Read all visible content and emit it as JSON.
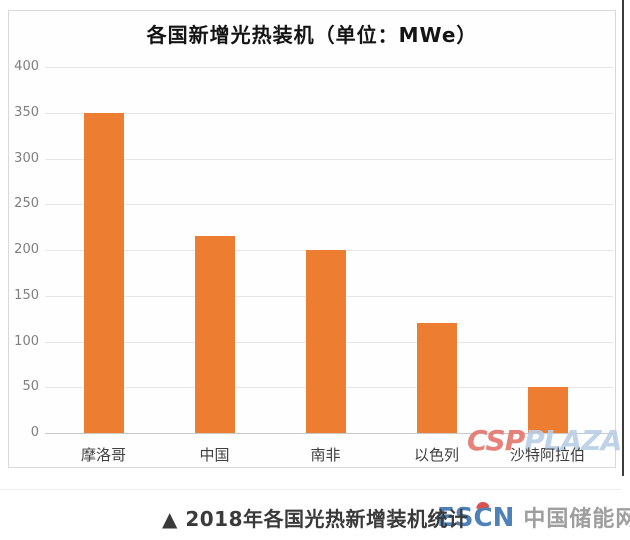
{
  "chart_data": {
    "type": "bar",
    "title": "各国新增光热装机（单位：MWe）",
    "categories": [
      "摩洛哥",
      "中国",
      "南非",
      "以色列",
      "沙特阿拉伯"
    ],
    "values": [
      350,
      215,
      200,
      120,
      50
    ],
    "xlabel": "",
    "ylabel": "",
    "ylim": [
      0,
      400
    ],
    "yticks": [
      0,
      50,
      100,
      150,
      200,
      250,
      300,
      350,
      400
    ],
    "grid": true,
    "legend": "none",
    "bar_color": "#ED7D31"
  },
  "watermark": {
    "csp": "CSP",
    "plaza": "PLAZA",
    "csp_color": "#E4756B",
    "plaza_color": "#B9CEE6"
  },
  "footer": {
    "caption": "▲ 2018年各国光热新增装机统计",
    "logo_text": "ESCN",
    "logo_site": "中国储能网",
    "logo_color": "#4E81B8",
    "logo_accent_color": "#D9534F",
    "logo_site_color": "#9E9E9E"
  }
}
